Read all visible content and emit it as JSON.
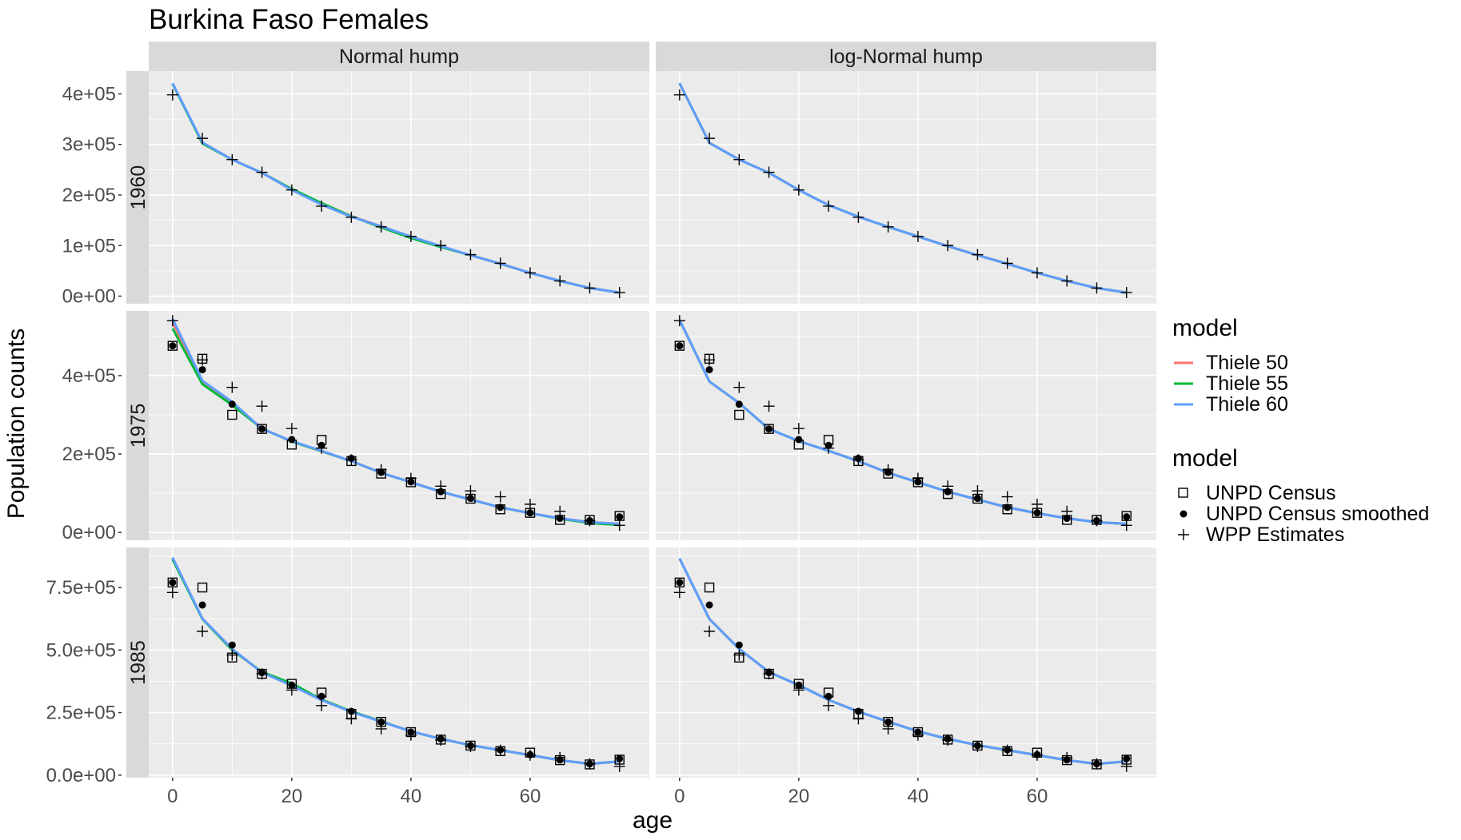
{
  "chart_data": {
    "type": "line",
    "title": "Burkina Faso Females",
    "xlabel": "age",
    "ylabel": "Population counts",
    "facet_cols": [
      "Normal hump",
      "log-Normal hump"
    ],
    "facet_rows": [
      "1960",
      "1975",
      "1985"
    ],
    "xlim": [
      -4,
      80
    ],
    "x_ticks": [
      0,
      20,
      40,
      60
    ],
    "x_tick_labels": [
      "0",
      "20",
      "40",
      "60"
    ],
    "y_axes": [
      {
        "ylim": [
          -15000,
          445000
        ],
        "ticks": [
          0,
          100000,
          200000,
          300000,
          400000
        ],
        "tick_labels": [
          "0e+00",
          "1e+05",
          "2e+05",
          "3e+05",
          "4e+05"
        ]
      },
      {
        "ylim": [
          -20000,
          565000
        ],
        "ticks": [
          0,
          200000,
          400000
        ],
        "tick_labels": [
          "0e+00",
          "2e+05",
          "4e+05"
        ]
      },
      {
        "ylim": [
          -10000,
          910000
        ],
        "ticks": [
          0,
          250000,
          500000,
          750000
        ],
        "tick_labels": [
          "0.0e+00",
          "2.5e+05",
          "5.0e+05",
          "7.5e+05"
        ]
      }
    ],
    "grid": true,
    "legend_position": "right",
    "legends": [
      {
        "title": "model",
        "type": "line",
        "items": [
          {
            "name": "Thiele 50",
            "color": "#F8766D"
          },
          {
            "name": "Thiele 55",
            "color": "#00BA38"
          },
          {
            "name": "Thiele 60",
            "color": "#619CFF"
          }
        ]
      },
      {
        "title": "model",
        "type": "point",
        "items": [
          {
            "name": "UNPD Census",
            "shape": "open-square"
          },
          {
            "name": "UNPD Census smoothed",
            "shape": "filled-circle"
          },
          {
            "name": "WPP Estimates",
            "shape": "plus"
          }
        ]
      }
    ],
    "x": [
      0,
      5,
      10,
      15,
      20,
      25,
      30,
      35,
      40,
      45,
      50,
      55,
      60,
      65,
      70,
      75
    ],
    "rows": [
      {
        "year": "1960",
        "wpp": [
          398000,
          312000,
          270000,
          245000,
          210000,
          178000,
          156000,
          137000,
          118000,
          100000,
          82000,
          65000,
          46000,
          30000,
          16000,
          7000
        ],
        "census": [],
        "smoothed": [],
        "panels": [
          {
            "series": [
              {
                "name": "Thiele 50",
                "values": [
                  420000,
                  303000,
                  270000,
                  244000,
                  211000,
                  184000,
                  158000,
                  138000,
                  117000,
                  98000,
                  81000,
                  64000,
                  46000,
                  30000,
                  16000,
                  7000
                ]
              },
              {
                "name": "Thiele 55",
                "values": [
                  420000,
                  302000,
                  270000,
                  244000,
                  212000,
                  184000,
                  158000,
                  136000,
                  115000,
                  97000,
                  81000,
                  64000,
                  46000,
                  30000,
                  16000,
                  7000
                ]
              },
              {
                "name": "Thiele 60",
                "values": [
                  421000,
                  304000,
                  270000,
                  244000,
                  210000,
                  181000,
                  157000,
                  138000,
                  118000,
                  99000,
                  81000,
                  64000,
                  46000,
                  30000,
                  16000,
                  7000
                ]
              }
            ]
          },
          {
            "series": [
              {
                "name": "Thiele 50",
                "values": [
                  421000,
                  303000,
                  270000,
                  244000,
                  210000,
                  180000,
                  157000,
                  137000,
                  118000,
                  99000,
                  81000,
                  64000,
                  46000,
                  30000,
                  16000,
                  7000
                ]
              },
              {
                "name": "Thiele 55",
                "values": [
                  421000,
                  303000,
                  270000,
                  244000,
                  210000,
                  180000,
                  157000,
                  137000,
                  118000,
                  99000,
                  81000,
                  64000,
                  46000,
                  30000,
                  16000,
                  7000
                ]
              },
              {
                "name": "Thiele 60",
                "values": [
                  421000,
                  303000,
                  270000,
                  244000,
                  210000,
                  180000,
                  157000,
                  137000,
                  118000,
                  99000,
                  81000,
                  64000,
                  46000,
                  30000,
                  16000,
                  7000
                ]
              }
            ]
          }
        ]
      },
      {
        "year": "1975",
        "wpp": [
          540000,
          440000,
          370000,
          322000,
          265000,
          215000,
          185000,
          160000,
          138000,
          118000,
          106000,
          91000,
          72000,
          54000,
          30000,
          18000
        ],
        "census": [
          476000,
          443000,
          300000,
          264000,
          224000,
          236000,
          182000,
          150000,
          128000,
          98000,
          86000,
          59000,
          50000,
          32000,
          32000,
          42000
        ],
        "smoothed": [
          476000,
          415000,
          327000,
          264000,
          237000,
          222000,
          189000,
          153000,
          129000,
          104000,
          87000,
          64000,
          50000,
          36000,
          30000,
          40000
        ],
        "panels": [
          {
            "series": [
              {
                "name": "Thiele 50",
                "values": [
                  535000,
                  383000,
                  330000,
                  265000,
                  232000,
                  207000,
                  182000,
                  152000,
                  128000,
                  104000,
                  84000,
                  64000,
                  49000,
                  36000,
                  26000,
                  22000
                ]
              },
              {
                "name": "Thiele 55",
                "values": [
                  520000,
                  378000,
                  325000,
                  265000,
                  232000,
                  207000,
                  182000,
                  152000,
                  128000,
                  104000,
                  84000,
                  64000,
                  49000,
                  35000,
                  24000,
                  19000
                ]
              },
              {
                "name": "Thiele 60",
                "values": [
                  545000,
                  387000,
                  333000,
                  264000,
                  233000,
                  208000,
                  182000,
                  152000,
                  128000,
                  104000,
                  84000,
                  64000,
                  49000,
                  36000,
                  26000,
                  22000
                ]
              }
            ]
          },
          {
            "series": [
              {
                "name": "Thiele 50",
                "values": [
                  542000,
                  385000,
                  330000,
                  264000,
                  233000,
                  208000,
                  182000,
                  152000,
                  128000,
                  104000,
                  84000,
                  64000,
                  49000,
                  36000,
                  26000,
                  22000
                ]
              },
              {
                "name": "Thiele 55",
                "values": [
                  542000,
                  385000,
                  330000,
                  264000,
                  233000,
                  208000,
                  182000,
                  152000,
                  128000,
                  104000,
                  84000,
                  64000,
                  49000,
                  36000,
                  26000,
                  22000
                ]
              },
              {
                "name": "Thiele 60",
                "values": [
                  542000,
                  385000,
                  330000,
                  264000,
                  233000,
                  208000,
                  182000,
                  152000,
                  128000,
                  104000,
                  84000,
                  64000,
                  49000,
                  36000,
                  26000,
                  22000
                ]
              }
            ]
          }
        ]
      },
      {
        "year": "1985",
        "wpp": [
          730000,
          575000,
          480000,
          405000,
          340000,
          278000,
          225000,
          185000,
          160000,
          140000,
          115000,
          100000,
          80000,
          70000,
          45000,
          35000
        ],
        "census": [
          770000,
          750000,
          470000,
          405000,
          365000,
          330000,
          245000,
          213000,
          172000,
          142000,
          118000,
          96000,
          90000,
          60000,
          43000,
          62000
        ],
        "smoothed": [
          770000,
          680000,
          520000,
          410000,
          360000,
          315000,
          255000,
          212000,
          172000,
          145000,
          118000,
          101000,
          82000,
          61000,
          45000,
          66000
        ],
        "panels": [
          {
            "series": [
              {
                "name": "Thiele 50",
                "values": [
                  868000,
                  625000,
                  502000,
                  410000,
                  365000,
                  300000,
                  255000,
                  215000,
                  175000,
                  145000,
                  120000,
                  100000,
                  80000,
                  60000,
                  45000,
                  55000
                ]
              },
              {
                "name": "Thiele 55",
                "values": [
                  862000,
                  624000,
                  500000,
                  413000,
                  367000,
                  302000,
                  255000,
                  215000,
                  175000,
                  145000,
                  120000,
                  100000,
                  80000,
                  60000,
                  45000,
                  55000
                ]
              },
              {
                "name": "Thiele 60",
                "values": [
                  870000,
                  626000,
                  505000,
                  410000,
                  358000,
                  300000,
                  253000,
                  214000,
                  175000,
                  145000,
                  120000,
                  100000,
                  80000,
                  60000,
                  45000,
                  55000
                ]
              }
            ]
          },
          {
            "series": [
              {
                "name": "Thiele 50",
                "values": [
                  866000,
                  624000,
                  505000,
                  412000,
                  360000,
                  301000,
                  254000,
                  214000,
                  175000,
                  145000,
                  120000,
                  100000,
                  80000,
                  60000,
                  45000,
                  55000
                ]
              },
              {
                "name": "Thiele 55",
                "values": [
                  866000,
                  624000,
                  505000,
                  412000,
                  360000,
                  301000,
                  254000,
                  214000,
                  175000,
                  145000,
                  120000,
                  100000,
                  80000,
                  60000,
                  45000,
                  55000
                ]
              },
              {
                "name": "Thiele 60",
                "values": [
                  866000,
                  624000,
                  505000,
                  412000,
                  360000,
                  301000,
                  254000,
                  214000,
                  175000,
                  145000,
                  120000,
                  100000,
                  80000,
                  60000,
                  45000,
                  55000
                ]
              }
            ]
          }
        ]
      }
    ]
  }
}
